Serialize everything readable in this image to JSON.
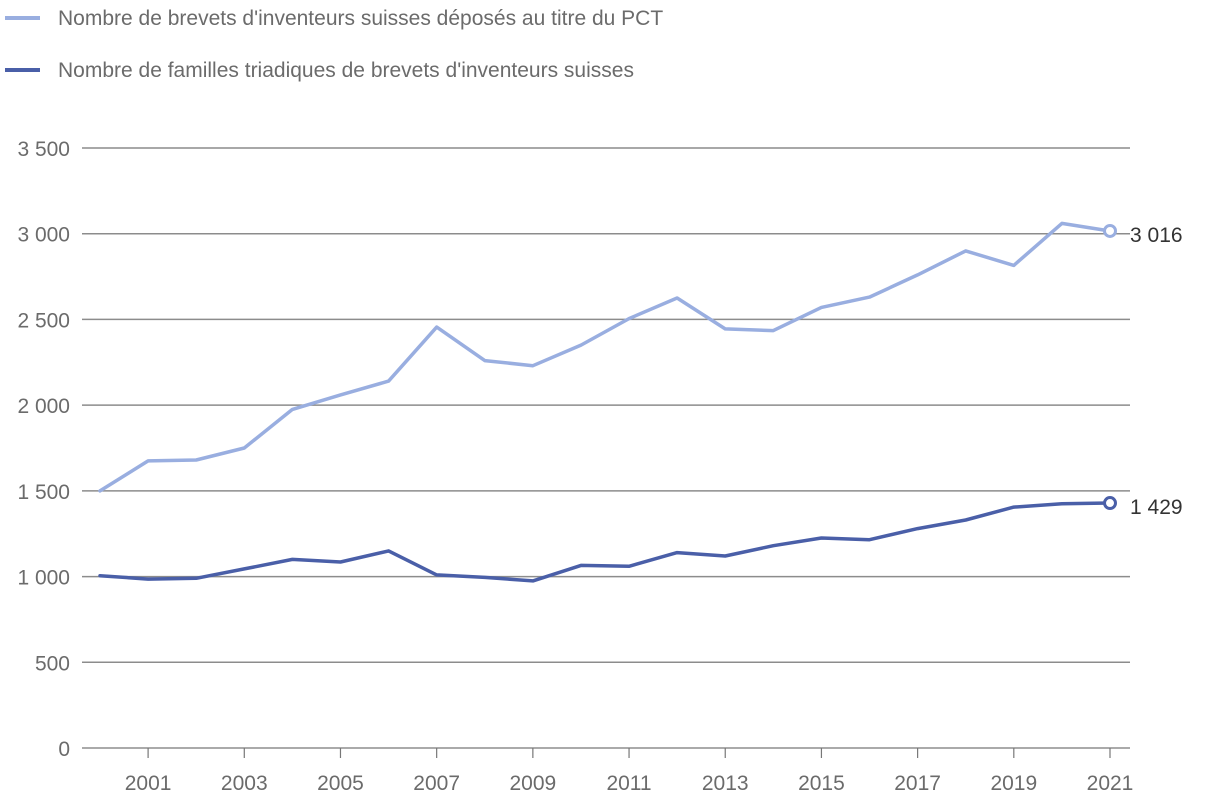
{
  "chart_data": {
    "type": "line",
    "title": "",
    "xlabel": "",
    "ylabel": "",
    "x": [
      2000,
      2001,
      2002,
      2003,
      2004,
      2005,
      2006,
      2007,
      2008,
      2009,
      2010,
      2011,
      2012,
      2013,
      2014,
      2015,
      2016,
      2017,
      2018,
      2019,
      2020,
      2021
    ],
    "xticks": [
      "2001",
      "2003",
      "2005",
      "2007",
      "2009",
      "2011",
      "2013",
      "2015",
      "2017",
      "2019",
      "2021"
    ],
    "yticks": [
      "0",
      "500",
      "1 000",
      "1 500",
      "2 000",
      "2 500",
      "3 000",
      "3 500"
    ],
    "ylim": [
      0,
      3500
    ],
    "grid": true,
    "legend_position": "top-left",
    "series": [
      {
        "name": "Nombre de brevets d'inventeurs suisses déposés au titre du PCT",
        "color": "#99aee0",
        "values": [
          1500,
          1675,
          1680,
          1750,
          1975,
          2060,
          2140,
          2455,
          2260,
          2230,
          2350,
          2505,
          2625,
          2445,
          2435,
          2570,
          2630,
          2760,
          2900,
          2815,
          3060,
          3016
        ],
        "end_label": "3 016"
      },
      {
        "name": "Nombre de familles triadiques de brevets d'inventeurs suisses",
        "color": "#4a5fa8",
        "values": [
          1005,
          985,
          990,
          1045,
          1100,
          1085,
          1150,
          1010,
          995,
          975,
          1065,
          1060,
          1140,
          1120,
          1180,
          1225,
          1215,
          1280,
          1330,
          1405,
          1425,
          1429
        ],
        "end_label": "1 429"
      }
    ]
  }
}
